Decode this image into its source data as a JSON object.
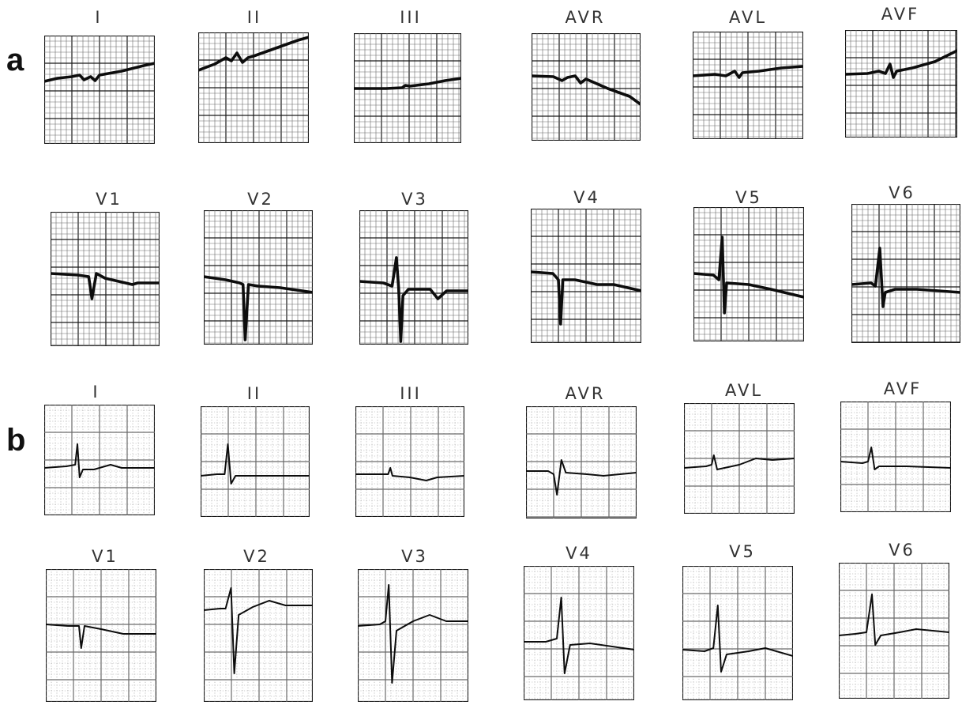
{
  "panels": [
    {
      "label": "a",
      "rows": [
        {
          "leads": [
            "I",
            "II",
            "III",
            "AVR",
            "AVL",
            "AVF"
          ]
        },
        {
          "leads": [
            "V1",
            "V2",
            "V3",
            "V4",
            "V5",
            "V6"
          ]
        }
      ]
    },
    {
      "label": "b",
      "rows": [
        {
          "leads": [
            "I",
            "II",
            "III",
            "AVR",
            "AVL",
            "AVF"
          ]
        },
        {
          "leads": [
            "V1",
            "V2",
            "V3",
            "V4",
            "V5",
            "V6"
          ]
        }
      ]
    }
  ],
  "colors": {
    "grid_major": "#1a1a1a",
    "grid_minor": "#6a6a6a",
    "grid_dotted": "#9a9a9a",
    "trace": "#0d0d0d",
    "paper": "#ffffff"
  }
}
